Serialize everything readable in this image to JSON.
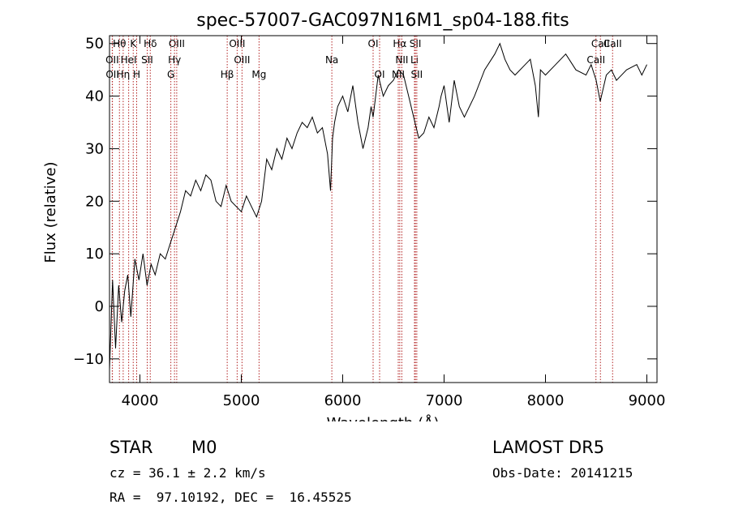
{
  "chart_data": {
    "type": "line",
    "title": "spec-57007-GAC097N16M1_sp04-188.fits",
    "xlabel": "Wavelength (Å)",
    "ylabel": "Flux (relative)",
    "xlim": [
      3700,
      9100
    ],
    "ylim": [
      -14.5,
      51.5
    ],
    "x_ticks": [
      4000,
      5000,
      6000,
      7000,
      8000,
      9000
    ],
    "y_ticks": [
      -10,
      0,
      10,
      20,
      30,
      40,
      50
    ],
    "line_color": "#000000",
    "marker_color": "#b22222",
    "series": [
      {
        "x": [
          3700,
          3730,
          3760,
          3790,
          3820,
          3850,
          3880,
          3910,
          3950,
          3990,
          4030,
          4070,
          4110,
          4150,
          4200,
          4250,
          4300,
          4350,
          4400,
          4450,
          4500,
          4550,
          4600,
          4650,
          4700,
          4750,
          4800,
          4850,
          4900,
          4950,
          5000,
          5050,
          5100,
          5150,
          5200,
          5250,
          5300,
          5350,
          5400,
          5450,
          5500,
          5550,
          5600,
          5650,
          5700,
          5750,
          5800,
          5850,
          5880,
          5900,
          5920,
          5950,
          6000,
          6050,
          6100,
          6150,
          6200,
          6250,
          6280,
          6300,
          6350,
          6400,
          6450,
          6500,
          6550,
          6600,
          6650,
          6700,
          6750,
          6800,
          6850,
          6900,
          6950,
          6970,
          7000,
          7050,
          7100,
          7150,
          7200,
          7300,
          7400,
          7500,
          7550,
          7600,
          7650,
          7700,
          7800,
          7850,
          7900,
          7930,
          7950,
          8000,
          8100,
          8200,
          8300,
          8400,
          8450,
          8500,
          8540,
          8600,
          8650,
          8700,
          8800,
          8900,
          8950,
          9000
        ],
        "y": [
          -12,
          5,
          -8,
          4,
          -3,
          3,
          6,
          -2,
          9,
          5,
          10,
          4,
          8,
          6,
          10,
          9,
          12,
          15,
          18,
          22,
          21,
          24,
          22,
          25,
          24,
          20,
          19,
          23,
          20,
          19,
          18,
          21,
          19,
          17,
          20,
          28,
          26,
          30,
          28,
          32,
          30,
          33,
          35,
          34,
          36,
          33,
          34,
          29,
          22,
          32,
          35,
          38,
          40,
          37,
          42,
          35,
          30,
          34,
          38,
          36,
          44,
          40,
          42,
          43,
          45,
          44,
          40,
          36,
          32,
          33,
          36,
          34,
          38,
          40,
          42,
          35,
          43,
          38,
          36,
          40,
          45,
          48,
          50,
          47,
          45,
          44,
          46,
          47,
          42,
          36,
          45,
          44,
          46,
          48,
          45,
          44,
          46,
          43,
          39,
          44,
          45,
          43,
          45,
          46,
          44,
          46
        ]
      }
    ],
    "markers": [
      {
        "label": "Hθ",
        "x": 3798
      },
      {
        "label": "K",
        "x": 3934
      },
      {
        "label": "Hδ",
        "x": 4102
      },
      {
        "label": "OIII",
        "x": 4363
      },
      {
        "label": "OIII",
        "x": 4959
      },
      {
        "label": "OI",
        "x": 6300
      },
      {
        "label": "Hα",
        "x": 6563
      },
      {
        "label": "SII",
        "x": 6717
      },
      {
        "label": "CaII",
        "x": 8542
      },
      {
        "label": "OII",
        "x": 3727
      },
      {
        "label": "HeI",
        "x": 3889
      },
      {
        "label": "SII",
        "x": 4072
      },
      {
        "label": "Hγ",
        "x": 4341
      },
      {
        "label": "OIII",
        "x": 5007
      },
      {
        "label": "Na",
        "x": 5893
      },
      {
        "label": "NII",
        "x": 6583
      },
      {
        "label": "Li",
        "x": 6708
      },
      {
        "label": "CaII",
        "x": 8498
      },
      {
        "label": "OII",
        "x": 3729
      },
      {
        "label": "Hη",
        "x": 3835
      },
      {
        "label": "H",
        "x": 3968
      },
      {
        "label": "G",
        "x": 4305
      },
      {
        "label": "Hβ",
        "x": 4861
      },
      {
        "label": "Mg",
        "x": 5175
      },
      {
        "label": "OI",
        "x": 6364
      },
      {
        "label": "NII",
        "x": 6548
      },
      {
        "label": "SII",
        "x": 6731
      },
      {
        "label": "CaII",
        "x": 8662
      }
    ]
  },
  "footer": {
    "object_class": "STAR",
    "subclass": "M0",
    "survey": "LAMOST DR5",
    "redshift": "cz = 36.1 ± 2.2 km/s",
    "obs_date": "Obs-Date: 20141215",
    "coords": "RA =  97.10192, DEC =  16.45525"
  }
}
